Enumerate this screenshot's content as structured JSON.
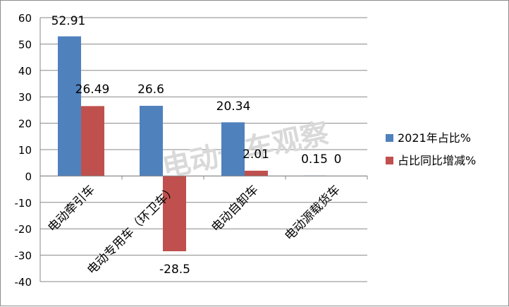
{
  "chart_data": {
    "type": "bar",
    "categories": [
      "电动牵引车",
      "电动专用车（环卫车）",
      "电动自卸车",
      "电动源载货车"
    ],
    "series": [
      {
        "name": "2021年占比%",
        "color": "#4f81bd",
        "values": [
          52.91,
          26.6,
          20.34,
          0.15
        ],
        "labels": [
          "52.91",
          "26.6",
          "20.34",
          "0.15"
        ]
      },
      {
        "name": "占比同比增减%",
        "color": "#c0504d",
        "values": [
          26.49,
          -28.5,
          2.01,
          0
        ],
        "labels": [
          "26.49",
          "-28.5",
          "2.01",
          "0"
        ]
      }
    ],
    "ylim": [
      -40,
      60
    ],
    "yticks": [
      60,
      50,
      40,
      30,
      20,
      10,
      0,
      -10,
      -20,
      -30,
      -40
    ],
    "grid": true,
    "legend_position": "right"
  },
  "watermark": "电动卡车观察"
}
